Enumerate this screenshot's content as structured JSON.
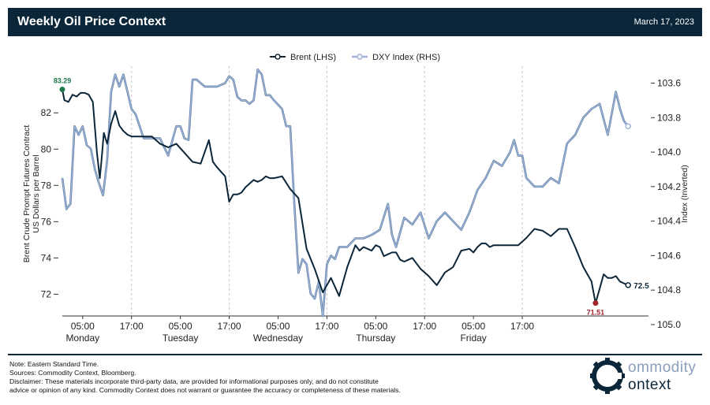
{
  "header": {
    "title": "Weekly Oil Price Context",
    "date": "March 17, 2023"
  },
  "colors": {
    "brent": "#0c2639",
    "dxy": "#9db6da",
    "header_bg": "#0c2639",
    "max_marker": "#1e7a4c",
    "min_marker": "#a3262f"
  },
  "chart_data": {
    "type": "line",
    "legend": [
      "Brent (LHS)",
      "DXY Index (RHS)"
    ],
    "legend_position": "top-center",
    "ylabel_left": "Brent Crude Prompt Futures Contract\nUS Dollars per Barrel",
    "ylabel_right": "Index (Inverted)",
    "ylim_left": [
      70.8,
      84.4
    ],
    "ylim_right": [
      104.95,
      103.52
    ],
    "right_axis_inverted": true,
    "yticks_left": [
      "72",
      "74",
      "76",
      "78",
      "80",
      "82"
    ],
    "yticks_right": [
      "103.6",
      "103.8",
      "104.0",
      "104.2",
      "104.4",
      "104.6",
      "104.8",
      "105.0"
    ],
    "xticks": [
      {
        "time": "05:00",
        "day": "Monday"
      },
      {
        "time": "17:00",
        "day": ""
      },
      {
        "time": "05:00",
        "day": "Tuesday"
      },
      {
        "time": "17:00",
        "day": ""
      },
      {
        "time": "05:00",
        "day": "Wednesday"
      },
      {
        "time": "17:00",
        "day": ""
      },
      {
        "time": "05:00",
        "day": "Thursday"
      },
      {
        "time": "17:00",
        "day": ""
      },
      {
        "time": "05:00",
        "day": "Friday"
      },
      {
        "time": "17:00",
        "day": ""
      }
    ],
    "x_unit": "hours since Monday 00:00 (EST)",
    "grid": "vertical dashed at 17:00",
    "annotations": {
      "max_label": "83.29",
      "min_label": "71.51",
      "last_label": "72.5"
    },
    "series": [
      {
        "name": "Brent (LHS)",
        "x": [
          0,
          0.5,
          1.5,
          2.5,
          3.5,
          4.5,
          5.5,
          6.5,
          7.5,
          8.5,
          9.2,
          9.6,
          10.2,
          11,
          12,
          13,
          14,
          15,
          16,
          17,
          18,
          19,
          20,
          22,
          24,
          26,
          28,
          30,
          32,
          34,
          36,
          37,
          38,
          40,
          41,
          42,
          43,
          44,
          45,
          47,
          48,
          49,
          50,
          51,
          52,
          54,
          56,
          58,
          60,
          62,
          64,
          66,
          68,
          70,
          72,
          73,
          74,
          75,
          76,
          77,
          78,
          79,
          80,
          81,
          82,
          83,
          84,
          85,
          86,
          88,
          90,
          92,
          94,
          96,
          98,
          100,
          101,
          102,
          103,
          104,
          105,
          106,
          108,
          110,
          112,
          114,
          116,
          118,
          120,
          122,
          124,
          126,
          128,
          130,
          131,
          132,
          133,
          134,
          135,
          136,
          137,
          138,
          139
        ],
        "values": [
          83.29,
          82.7,
          82.6,
          83.0,
          82.9,
          83.1,
          83.1,
          83.0,
          82.6,
          79.8,
          78.4,
          79.3,
          80.9,
          80.3,
          81.4,
          82.1,
          81.3,
          81.0,
          80.8,
          80.7,
          80.7,
          80.7,
          80.7,
          80.7,
          80.3,
          80.1,
          80.3,
          79.8,
          79.3,
          79.2,
          80.5,
          79.3,
          79.0,
          78.5,
          77.1,
          77.5,
          77.5,
          77.6,
          77.9,
          78.3,
          78.2,
          78.3,
          78.5,
          78.4,
          78.4,
          78.5,
          77.8,
          77.3,
          74.5,
          73.4,
          72.1,
          72.9,
          71.9,
          73.5,
          74.7,
          74.4,
          74.6,
          74.5,
          74.4,
          74.7,
          74.6,
          74.1,
          74.2,
          74.3,
          74.3,
          73.9,
          73.8,
          73.9,
          74.0,
          73.4,
          73.0,
          72.5,
          73.2,
          73.5,
          74.4,
          74.5,
          74.3,
          74.6,
          74.8,
          74.8,
          74.6,
          74.7,
          74.7,
          74.7,
          74.7,
          75.1,
          75.6,
          75.5,
          75.2,
          75.6,
          75.6,
          74.6,
          73.5,
          72.7,
          71.51,
          72.3,
          73.1,
          72.9,
          72.9,
          73.0,
          72.7,
          72.6,
          72.5
        ]
      },
      {
        "name": "DXY Index (RHS)",
        "x": [
          0,
          1,
          2,
          3,
          4,
          5,
          6,
          7,
          8,
          9,
          10,
          11,
          12,
          13,
          14,
          15,
          16,
          17,
          18,
          20,
          22,
          24,
          26,
          28,
          29,
          30,
          31,
          32,
          33,
          34,
          35,
          36,
          38,
          40,
          41,
          42,
          43,
          44,
          45,
          46,
          47,
          48,
          49,
          50,
          51,
          52,
          54,
          55,
          56,
          57,
          58,
          59,
          60,
          61,
          62,
          63,
          64,
          65,
          66,
          67,
          68,
          70,
          72,
          74,
          76,
          78,
          80,
          81,
          82,
          84,
          86,
          88,
          90,
          92,
          94,
          96,
          98,
          100,
          102,
          104,
          106,
          108,
          110,
          111,
          112,
          113,
          114,
          116,
          118,
          120,
          122,
          124,
          126,
          128,
          130,
          132,
          134,
          136,
          137,
          138,
          139
        ],
        "values": [
          104.15,
          104.33,
          104.3,
          103.85,
          103.9,
          103.85,
          103.96,
          103.98,
          104.1,
          104.18,
          104.25,
          104.05,
          103.65,
          103.55,
          103.62,
          103.55,
          103.65,
          103.75,
          103.78,
          103.92,
          103.92,
          103.92,
          104.02,
          103.85,
          103.85,
          103.92,
          103.93,
          103.58,
          103.58,
          103.6,
          103.62,
          103.62,
          103.62,
          103.6,
          103.56,
          103.58,
          103.68,
          103.7,
          103.7,
          103.72,
          103.7,
          103.52,
          103.55,
          103.67,
          103.67,
          103.7,
          103.75,
          103.85,
          103.85,
          104.3,
          104.7,
          104.62,
          104.65,
          104.82,
          104.85,
          104.75,
          104.95,
          104.65,
          104.6,
          104.62,
          104.55,
          104.55,
          104.5,
          104.5,
          104.48,
          104.45,
          104.3,
          104.48,
          104.55,
          104.38,
          104.42,
          104.35,
          104.5,
          104.4,
          104.35,
          104.4,
          104.45,
          104.35,
          104.22,
          104.15,
          104.05,
          104.08,
          104.0,
          103.93,
          104.02,
          104.02,
          104.15,
          104.2,
          104.2,
          104.15,
          104.18,
          103.95,
          103.9,
          103.8,
          103.75,
          103.72,
          103.9,
          103.65,
          103.75,
          103.82,
          103.85
        ]
      }
    ]
  },
  "footer": {
    "note": "Note: Eastern Standard Time.",
    "sources": "Sources: Commodity Context, Bloomberg.",
    "disclaimer_line1": "Disclaimer: These materials incorporate third-party data, are provided for informational purposes only, and do not constitute",
    "disclaimer_line2": "advice or opinion of any kind. Commodity Context does not warrant or guarantee the accuracy or completeness of these materials.",
    "logo_word1": "ommodity",
    "logo_word2": "ontext",
    "logo_icon": "gear-c-icon"
  }
}
